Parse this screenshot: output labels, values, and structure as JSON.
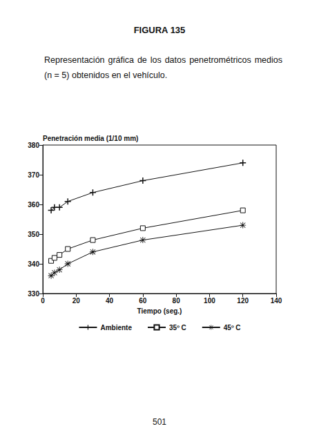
{
  "page": {
    "heading": "FIGURA 135",
    "caption": "Representación gráfica de los datos penetrométricos medios (n = 5) obtenidos en el vehículo.",
    "page_number": "501"
  },
  "chart_data": {
    "type": "line",
    "y_label": "Penetración media (1/10 mm)",
    "x_label": "Tiempo (seg.)",
    "x": [
      5,
      7,
      10,
      15,
      30,
      60,
      120
    ],
    "series": [
      {
        "name": "Ambiente",
        "color": "#111111",
        "marker": "plus",
        "values": [
          358,
          359,
          359,
          361,
          364,
          368,
          374
        ]
      },
      {
        "name": "35º C",
        "color": "#111111",
        "marker": "square",
        "values": [
          341,
          342,
          343,
          345,
          348,
          352,
          358
        ]
      },
      {
        "name": "45º C",
        "color": "#111111",
        "marker": "asterisk",
        "values": [
          336,
          337,
          338,
          340,
          344,
          348,
          353
        ]
      }
    ],
    "xlim": [
      0,
      140
    ],
    "xticks": [
      0,
      20,
      40,
      60,
      80,
      100,
      120,
      140
    ],
    "ylim": [
      330,
      380
    ],
    "yticks": [
      330,
      340,
      350,
      360,
      370,
      380
    ],
    "grid": false,
    "legend": "bottom"
  }
}
